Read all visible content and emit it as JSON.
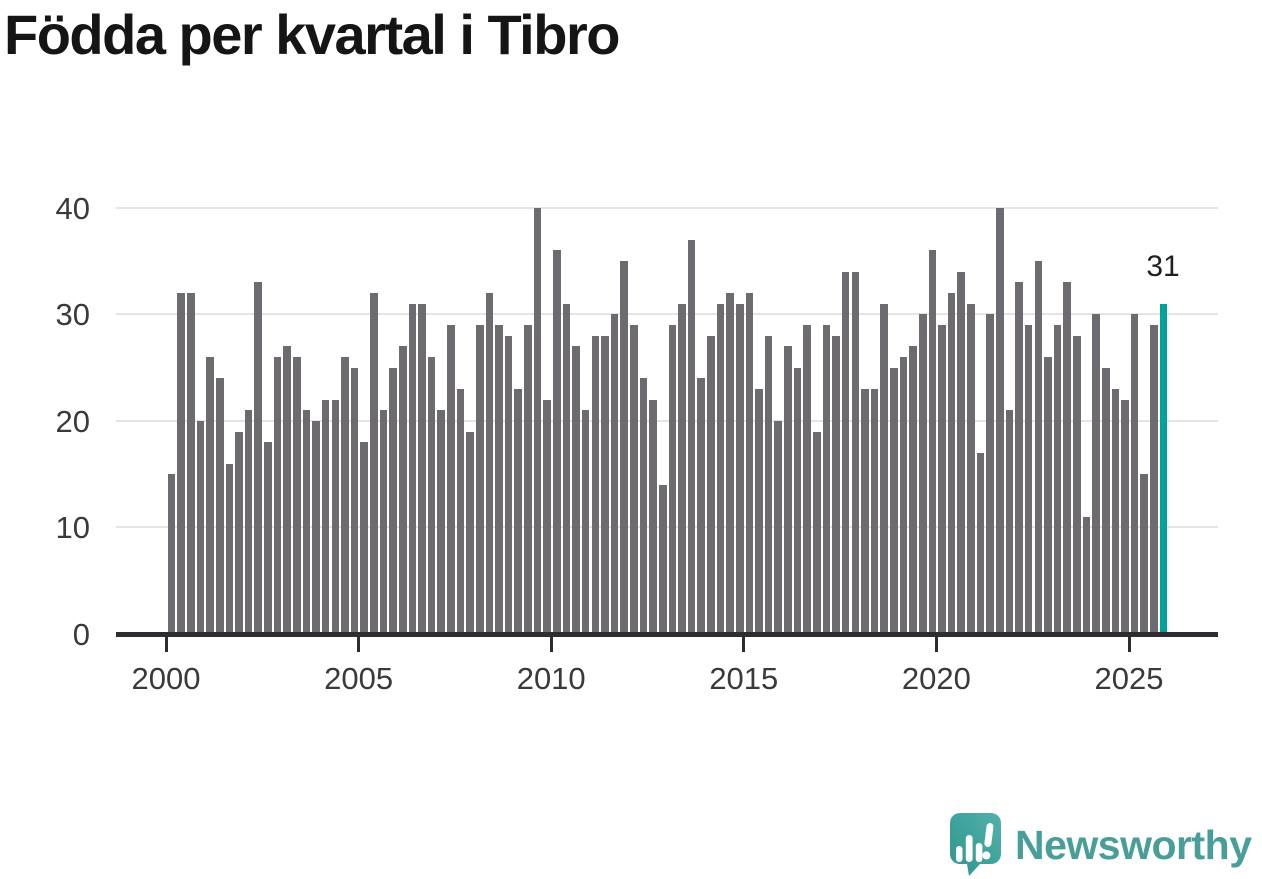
{
  "title": "Födda per kvartal i Tibro",
  "annotation": {
    "label": "31"
  },
  "brand": {
    "name": "Newsworthy"
  },
  "colors": {
    "bar": "#6d6a70",
    "highlight": "#00a29a",
    "grid": "#e4e4e4",
    "axis": "#2d2c31",
    "tick_text": "#3a3a3a",
    "title_text": "#151515",
    "brand_text": "#4a9e9a",
    "brand_icon_light": "#52b1ab",
    "brand_icon_dark": "#2f948e"
  },
  "chart_data": {
    "type": "bar",
    "title": "Födda per kvartal i Tibro",
    "xlabel": "",
    "ylabel": "",
    "ylim": [
      0,
      40
    ],
    "yticks": [
      0,
      10,
      20,
      30,
      40
    ],
    "xtick_years": [
      2000,
      2005,
      2010,
      2015,
      2020,
      2025
    ],
    "grid": "horizontal-only",
    "legend": "none",
    "bar_color": "#6d6a70",
    "highlight_index": 103,
    "highlight_color": "#00a29a",
    "highlight_value_label": "31",
    "categories": [
      "2000Q1",
      "2000Q2",
      "2000Q3",
      "2000Q4",
      "2001Q1",
      "2001Q2",
      "2001Q3",
      "2001Q4",
      "2002Q1",
      "2002Q2",
      "2002Q3",
      "2002Q4",
      "2003Q1",
      "2003Q2",
      "2003Q3",
      "2003Q4",
      "2004Q1",
      "2004Q2",
      "2004Q3",
      "2004Q4",
      "2005Q1",
      "2005Q2",
      "2005Q3",
      "2005Q4",
      "2006Q1",
      "2006Q2",
      "2006Q3",
      "2006Q4",
      "2007Q1",
      "2007Q2",
      "2007Q3",
      "2007Q4",
      "2008Q1",
      "2008Q2",
      "2008Q3",
      "2008Q4",
      "2009Q1",
      "2009Q2",
      "2009Q3",
      "2009Q4",
      "2010Q1",
      "2010Q2",
      "2010Q3",
      "2010Q4",
      "2011Q1",
      "2011Q2",
      "2011Q3",
      "2011Q4",
      "2012Q1",
      "2012Q2",
      "2012Q3",
      "2012Q4",
      "2013Q1",
      "2013Q2",
      "2013Q3",
      "2013Q4",
      "2014Q1",
      "2014Q2",
      "2014Q3",
      "2014Q4",
      "2015Q1",
      "2015Q2",
      "2015Q3",
      "2015Q4",
      "2016Q1",
      "2016Q2",
      "2016Q3",
      "2016Q4",
      "2017Q1",
      "2017Q2",
      "2017Q3",
      "2017Q4",
      "2018Q1",
      "2018Q2",
      "2018Q3",
      "2018Q4",
      "2019Q1",
      "2019Q2",
      "2019Q3",
      "2019Q4",
      "2020Q1",
      "2020Q2",
      "2020Q3",
      "2020Q4",
      "2021Q1",
      "2021Q2",
      "2021Q3",
      "2021Q4",
      "2022Q1",
      "2022Q2",
      "2022Q3",
      "2022Q4",
      "2023Q1",
      "2023Q2",
      "2023Q3",
      "2023Q4",
      "2024Q1",
      "2024Q2",
      "2024Q3",
      "2024Q4",
      "2025Q1",
      "2025Q2",
      "2025Q3",
      "2025Q4"
    ],
    "values": [
      15,
      32,
      32,
      20,
      26,
      24,
      16,
      19,
      21,
      33,
      18,
      26,
      27,
      26,
      21,
      20,
      22,
      22,
      26,
      25,
      18,
      32,
      21,
      25,
      27,
      31,
      31,
      26,
      21,
      29,
      23,
      19,
      29,
      32,
      29,
      28,
      23,
      29,
      40,
      22,
      36,
      31,
      27,
      21,
      28,
      28,
      30,
      35,
      29,
      24,
      22,
      14,
      29,
      31,
      37,
      24,
      28,
      31,
      32,
      31,
      32,
      23,
      28,
      20,
      27,
      25,
      29,
      19,
      29,
      28,
      34,
      34,
      23,
      23,
      31,
      25,
      26,
      27,
      30,
      36,
      29,
      32,
      34,
      31,
      17,
      30,
      40,
      21,
      33,
      29,
      35,
      26,
      29,
      33,
      28,
      11,
      30,
      25,
      23,
      22,
      30,
      15,
      29,
      31
    ]
  }
}
